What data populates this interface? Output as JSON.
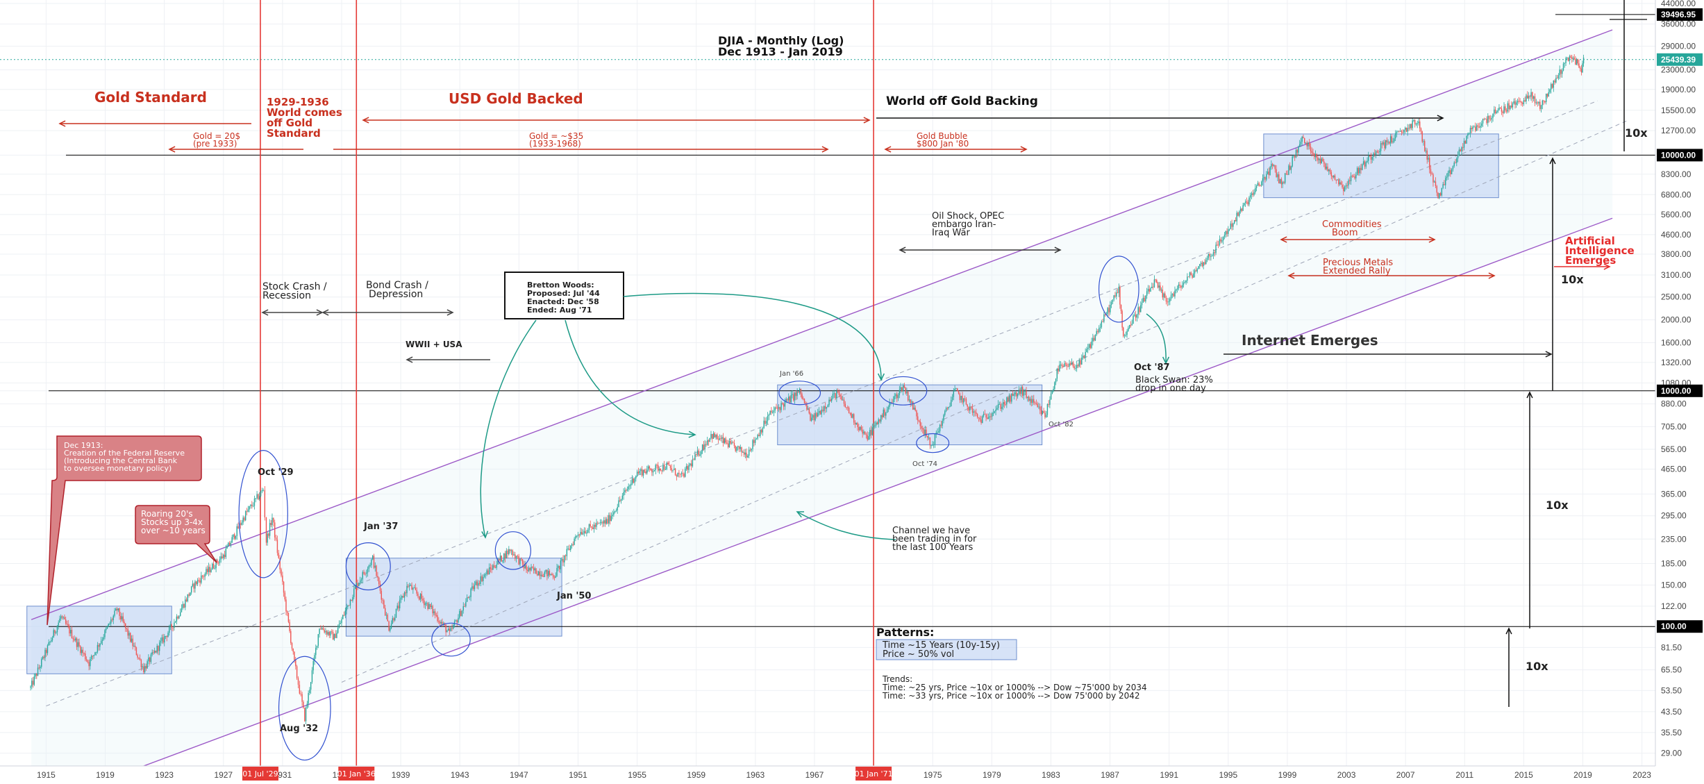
{
  "chart_data": {
    "type": "candlestick",
    "title": "DJIA - Monthly (Log)",
    "subtitle": "Dec 1913 - Jan 2019",
    "scale": "log",
    "xlim": [
      1914.9,
      2024.4
    ],
    "ylim": [
      26.6,
      44000
    ],
    "x_ticks": [
      "1915",
      "1919",
      "1923",
      "1927",
      "1931",
      "1935",
      "1939",
      "1943",
      "1947",
      "1951",
      "1955",
      "1959",
      "1963",
      "1967",
      "1971",
      "1975",
      "1979",
      "1983",
      "1987",
      "1991",
      "1995",
      "1999",
      "2003",
      "2007",
      "2011",
      "2015",
      "2019",
      "2023"
    ],
    "y_ticks": [
      "44000.00",
      "36000.00",
      "29000.00",
      "23000.00",
      "19000.00",
      "15500.00",
      "12700.00",
      "10000.00",
      "8300.00",
      "6800.00",
      "5600.00",
      "4600.00",
      "3800.00",
      "3100.00",
      "2500.00",
      "2000.00",
      "1600.00",
      "1320.00",
      "1080.00",
      "1000.00",
      "880.00",
      "705.00",
      "565.00",
      "465.00",
      "365.00",
      "295.00",
      "235.00",
      "185.00",
      "150.00",
      "122.00",
      "100.00",
      "81.50",
      "65.50",
      "53.50",
      "43.50",
      "35.50",
      "29.00"
    ],
    "y_tick_values": [
      44000,
      36000,
      29000,
      23000,
      19000,
      15500,
      12700,
      10000,
      8300,
      6800,
      5600,
      4600,
      3800,
      3100,
      2500,
      2000,
      1600,
      1320,
      1080,
      1000,
      880,
      705,
      565,
      465,
      365,
      295,
      235,
      185,
      150,
      122,
      100,
      81.5,
      65.5,
      53.5,
      43.5,
      35.5,
      29
    ],
    "price_labels": [
      {
        "value": 39496.95,
        "text": "39496.95",
        "bg": "#000000"
      },
      {
        "value": 25439.39,
        "text": "25439.39",
        "bg": "#26a69a"
      },
      {
        "value": 10000,
        "text": "10000.00",
        "bg": "#000000"
      },
      {
        "value": 1000,
        "text": "1000.00",
        "bg": "#000000"
      },
      {
        "value": 100,
        "text": "100.00",
        "bg": "#000000"
      }
    ],
    "current_price": 25439.39,
    "event_dates": [
      {
        "year": 1929.5,
        "label": "01 Jul '29"
      },
      {
        "year": 1936.0,
        "label": "01 Jan '36"
      },
      {
        "year": 1971.0,
        "label": "01 Jan '71"
      }
    ],
    "key_points": [
      {
        "x": 1913.95,
        "y": 55
      },
      {
        "x": 1916.0,
        "y": 110
      },
      {
        "x": 1917.9,
        "y": 70
      },
      {
        "x": 1919.8,
        "y": 118
      },
      {
        "x": 1921.6,
        "y": 66
      },
      {
        "x": 1923.5,
        "y": 100
      },
      {
        "x": 1925.0,
        "y": 150
      },
      {
        "x": 1927.0,
        "y": 200
      },
      {
        "x": 1928.5,
        "y": 300
      },
      {
        "x": 1929.7,
        "y": 381
      },
      {
        "x": 1929.9,
        "y": 230
      },
      {
        "x": 1930.3,
        "y": 290
      },
      {
        "x": 1931.0,
        "y": 150
      },
      {
        "x": 1931.8,
        "y": 70
      },
      {
        "x": 1932.5,
        "y": 41
      },
      {
        "x": 1933.5,
        "y": 100
      },
      {
        "x": 1934.5,
        "y": 90
      },
      {
        "x": 1936.0,
        "y": 150
      },
      {
        "x": 1937.1,
        "y": 194
      },
      {
        "x": 1938.2,
        "y": 99
      },
      {
        "x": 1939.5,
        "y": 150
      },
      {
        "x": 1941.0,
        "y": 120
      },
      {
        "x": 1942.3,
        "y": 93
      },
      {
        "x": 1944.0,
        "y": 150
      },
      {
        "x": 1946.4,
        "y": 212
      },
      {
        "x": 1947.5,
        "y": 175
      },
      {
        "x": 1949.4,
        "y": 165
      },
      {
        "x": 1951.0,
        "y": 250
      },
      {
        "x": 1953.0,
        "y": 280
      },
      {
        "x": 1955.0,
        "y": 450
      },
      {
        "x": 1957.0,
        "y": 480
      },
      {
        "x": 1958.0,
        "y": 430
      },
      {
        "x": 1960.0,
        "y": 650
      },
      {
        "x": 1962.4,
        "y": 540
      },
      {
        "x": 1964.0,
        "y": 800
      },
      {
        "x": 1966.0,
        "y": 990
      },
      {
        "x": 1966.8,
        "y": 750
      },
      {
        "x": 1968.5,
        "y": 980
      },
      {
        "x": 1970.5,
        "y": 630
      },
      {
        "x": 1973.0,
        "y": 1050
      },
      {
        "x": 1974.9,
        "y": 580
      },
      {
        "x": 1976.5,
        "y": 1000
      },
      {
        "x": 1978.2,
        "y": 750
      },
      {
        "x": 1981.0,
        "y": 1000
      },
      {
        "x": 1982.6,
        "y": 780
      },
      {
        "x": 1983.5,
        "y": 1250
      },
      {
        "x": 1985.0,
        "y": 1300
      },
      {
        "x": 1987.6,
        "y": 2700
      },
      {
        "x": 1987.9,
        "y": 1700
      },
      {
        "x": 1990.0,
        "y": 2900
      },
      {
        "x": 1990.8,
        "y": 2400
      },
      {
        "x": 1994.0,
        "y": 3900
      },
      {
        "x": 1996.0,
        "y": 6000
      },
      {
        "x": 1998.0,
        "y": 9000
      },
      {
        "x": 1998.6,
        "y": 7500
      },
      {
        "x": 2000.0,
        "y": 11700
      },
      {
        "x": 2002.8,
        "y": 7300
      },
      {
        "x": 2005.0,
        "y": 10500
      },
      {
        "x": 2007.8,
        "y": 14000
      },
      {
        "x": 2009.2,
        "y": 6600
      },
      {
        "x": 2011.3,
        "y": 12500
      },
      {
        "x": 2013.0,
        "y": 15000
      },
      {
        "x": 2015.5,
        "y": 17800
      },
      {
        "x": 2016.1,
        "y": 16000
      },
      {
        "x": 2018.1,
        "y": 26600
      },
      {
        "x": 2018.9,
        "y": 23300
      },
      {
        "x": 2019.05,
        "y": 25439
      }
    ],
    "channel": {
      "upper": [
        [
          1914,
          107
        ],
        [
          2021,
          34000
        ]
      ],
      "lower": [
        [
          1914,
          17
        ],
        [
          2021,
          5400
        ]
      ]
    },
    "regression_lines": [
      [
        [
          1915,
          46
        ],
        [
          2020,
          17000
        ]
      ],
      [
        [
          1935,
          58
        ],
        [
          2022,
          14000
        ]
      ]
    ],
    "boxes": [
      {
        "x0": 1913.7,
        "x1": 1923.5,
        "y0": 63,
        "y1": 122
      },
      {
        "x0": 1935.3,
        "x1": 1949.9,
        "y0": 91,
        "y1": 195
      },
      {
        "x0": 1964.5,
        "x1": 1982.4,
        "y0": 590,
        "y1": 1060
      },
      {
        "x0": 1997.4,
        "x1": 2013.3,
        "y0": 6600,
        "y1": 12300
      }
    ],
    "circles": [
      {
        "x": 1929.7,
        "y": 300,
        "rx": 1.65,
        "ry": 0.27
      },
      {
        "x": 1932.5,
        "y": 45,
        "rx": 1.75,
        "ry": 0.22
      },
      {
        "x": 1936.8,
        "y": 180,
        "rx": 1.5,
        "ry": 0.1
      },
      {
        "x": 1942.4,
        "y": 88,
        "rx": 1.3,
        "ry": 0.07
      },
      {
        "x": 1946.6,
        "y": 210,
        "rx": 1.2,
        "ry": 0.08
      },
      {
        "x": 1966.0,
        "y": 980,
        "rx": 1.4,
        "ry": 0.05
      },
      {
        "x": 1973.0,
        "y": 1000,
        "rx": 1.6,
        "ry": 0.06
      },
      {
        "x": 1975.0,
        "y": 600,
        "rx": 1.1,
        "ry": 0.04
      },
      {
        "x": 1987.6,
        "y": 2700,
        "rx": 1.35,
        "ry": 0.14
      }
    ],
    "annotations": {
      "gold_standard": "Gold Standard",
      "gold_20": "Gold = 20$",
      "pre_1933": "(pre 1933)",
      "world_1929_l1": "1929-1936",
      "world_1929_l2": "World comes",
      "world_1929_l3": "off Gold",
      "world_1929_l4": "Standard",
      "usd_gold_backed": "USD Gold Backed",
      "gold_35": "Gold = ~$35",
      "gold_35_years": "(1933-1968)",
      "world_off_gold": "World off Gold Backing",
      "gold_bubble": "Gold Bubble",
      "gold_800": "$800 Jan '80",
      "oil_shock_l1": "Oil Shock, OPEC",
      "oil_shock_l2": "embargo Iran-",
      "oil_shock_l3": "Iraq War",
      "commodities_l1": "Commodities",
      "commodities_l2": "Boom",
      "precious_l1": "Precious Metals",
      "precious_l2": "Extended Rally",
      "ai_l1": "Artificial",
      "ai_l2": "Intelligence",
      "ai_l3": "Emerges",
      "stock_crash_l1": "Stock Crash /",
      "stock_crash_l2": "Recession",
      "bond_crash_l1": "Bond Crash /",
      "bond_crash_l2": "Depression",
      "wwii": "WWII + USA",
      "bretton_l1": "Bretton Woods:",
      "bretton_l2": "Proposed: Jul '44",
      "bretton_l3": "Enacted: Dec '58",
      "bretton_l4": "Ended: Aug '71",
      "internet": "Internet Emerges",
      "oct87": "Oct '87",
      "black_swan_l1": "Black Swan: 23%",
      "black_swan_l2": "drop in one day",
      "jan66": "Jan '66",
      "oct74": "Oct '74",
      "oct82": "Oct '82",
      "oct29": "Oct '29",
      "aug32": "Aug '32",
      "jan37": "Jan '37",
      "jan50": "Jan '50",
      "fed_l1": "Dec 1913:",
      "fed_l2": "Creation of the Federal Reserve",
      "fed_l3": "(Introducing the Central Bank",
      "fed_l4": " to oversee monetary policy)",
      "roaring_l1": "Roaring 20's",
      "roaring_l2": "Stocks up 3-4x",
      "roaring_l3": "over ~10 years",
      "channel_l1": "Channel we have",
      "channel_l2": "been trading in for",
      "channel_l3": "the last 100 Years",
      "patterns": "Patterns:",
      "patterns_l1": "Time ~15 Years (10y-15y)",
      "patterns_l2": "Price ~ 50% vol",
      "trends": "Trends:",
      "trends_l1": "Time: ~25 yrs, Price ~10x or 1000% --> Dow ~75'000 by 2034",
      "trends_l2": "Time: ~33 yrs, Price ~10x or 1000% --> Dow 75'000 by 2042",
      "tenx": "10x"
    }
  },
  "colors": {
    "up": "#26a69a",
    "down": "#ef5350",
    "channel": "#9c59c7",
    "event_line": "#e53935",
    "gold_text": "#c8301e",
    "teal_arrow": "#1c9a86",
    "box_fill": "#bcd0f2",
    "box_stroke": "#6e8fcf",
    "circle": "#3050d0",
    "callout_fill": "#d98286",
    "callout_stroke": "#b0202a"
  }
}
